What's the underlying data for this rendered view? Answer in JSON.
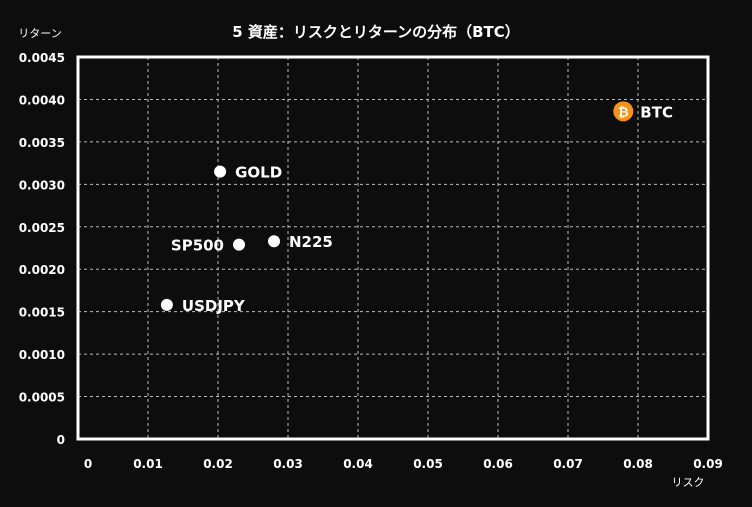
{
  "chart_data": {
    "type": "scatter",
    "title": "5 資産：リスクとリターンの分布（BTC）",
    "xlabel": "リスク",
    "ylabel": "リターン",
    "xlim": [
      0,
      0.09
    ],
    "ylim": [
      0,
      0.0045
    ],
    "grid": true,
    "xticks": [
      "0",
      "0.01",
      "0.02",
      "0.03",
      "0.04",
      "0.05",
      "0.06",
      "0.07",
      "0.08",
      "0.09"
    ],
    "yticks": [
      "0",
      "0.0005",
      "0.0010",
      "0.0015",
      "0.0020",
      "0.0025",
      "0.0030",
      "0.0035",
      "0.0040",
      "0.0045"
    ],
    "points": [
      {
        "label": "BTC",
        "x": 0.0779,
        "y": 0.00386,
        "color": "#f7931a",
        "icon": "bitcoin-icon",
        "label_side": "right"
      },
      {
        "label": "GOLD",
        "x": 0.0203,
        "y": 0.00315,
        "color": "#ffffff",
        "label_side": "right"
      },
      {
        "label": "SP500",
        "x": 0.023,
        "y": 0.00229,
        "color": "#ffffff",
        "label_side": "left"
      },
      {
        "label": "N225",
        "x": 0.028,
        "y": 0.00233,
        "color": "#ffffff",
        "label_side": "right"
      },
      {
        "label": "USDJPY",
        "x": 0.0127,
        "y": 0.00158,
        "color": "#ffffff",
        "label_side": "right"
      }
    ]
  }
}
